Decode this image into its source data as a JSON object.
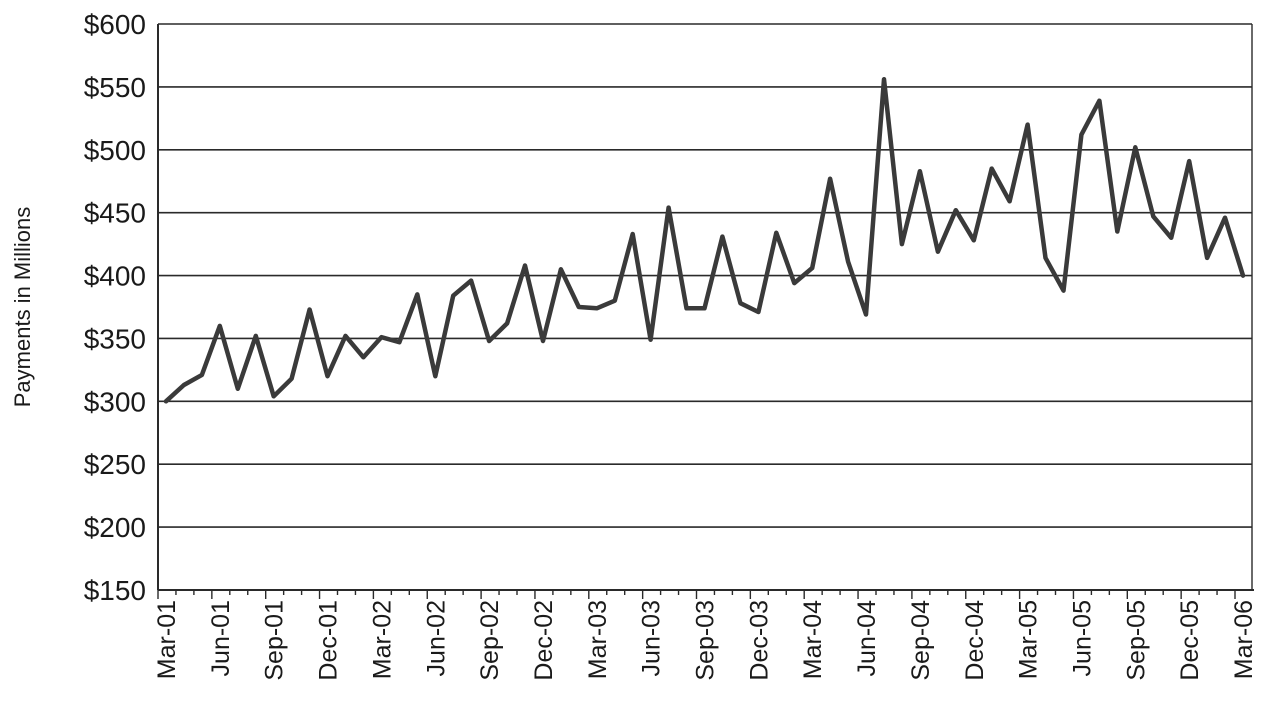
{
  "chart_data": {
    "type": "line",
    "title": "",
    "xlabel": "",
    "ylabel": "Payments in Millions",
    "ylim": [
      150,
      600
    ],
    "y_tick_values": [
      150,
      200,
      250,
      300,
      350,
      400,
      450,
      500,
      550,
      600
    ],
    "y_tick_labels": [
      "$150",
      "$200",
      "$250",
      "$300",
      "$350",
      "$400",
      "$450",
      "$500",
      "$550",
      "$600"
    ],
    "x_tick_labels": [
      "Mar-01",
      "Jun-01",
      "Sep-01",
      "Dec-01",
      "Mar-02",
      "Jun-02",
      "Sep-02",
      "Dec-02",
      "Mar-03",
      "Jun-03",
      "Sep-03",
      "Dec-03",
      "Mar-04",
      "Jun-04",
      "Sep-04",
      "Dec-04",
      "Mar-05",
      "Jun-05",
      "Sep-05",
      "Dec-05",
      "Mar-06"
    ],
    "grid": true,
    "legend": "none",
    "colors": {
      "line": "#3a3a3a",
      "grid": "#2a2a2a",
      "axis": "#2a2a2a"
    },
    "x": [
      "Mar-01",
      "Apr-01",
      "May-01",
      "Jun-01",
      "Jul-01",
      "Aug-01",
      "Sep-01",
      "Oct-01",
      "Nov-01",
      "Dec-01",
      "Jan-02",
      "Feb-02",
      "Mar-02",
      "Apr-02",
      "May-02",
      "Jun-02",
      "Jul-02",
      "Aug-02",
      "Sep-02",
      "Oct-02",
      "Nov-02",
      "Dec-02",
      "Jan-03",
      "Feb-03",
      "Mar-03",
      "Apr-03",
      "May-03",
      "Jun-03",
      "Jul-03",
      "Aug-03",
      "Sep-03",
      "Oct-03",
      "Nov-03",
      "Dec-03",
      "Jan-04",
      "Feb-04",
      "Mar-04",
      "Apr-04",
      "May-04",
      "Jun-04",
      "Jul-04",
      "Aug-04",
      "Sep-04",
      "Oct-04",
      "Nov-04",
      "Dec-04",
      "Jan-05",
      "Feb-05",
      "Mar-05",
      "Apr-05",
      "May-05",
      "Jun-05",
      "Jul-05",
      "Aug-05",
      "Sep-05",
      "Oct-05",
      "Nov-05",
      "Dec-05",
      "Jan-06",
      "Feb-06",
      "Mar-06"
    ],
    "series": [
      {
        "values": [
          300,
          313,
          321,
          360,
          310,
          352,
          304,
          318,
          373,
          320,
          352,
          335,
          351,
          347,
          385,
          320,
          384,
          396,
          348,
          362,
          408,
          348,
          405,
          375,
          374,
          380,
          433,
          349,
          454,
          374,
          374,
          431,
          378,
          371,
          434,
          394,
          406,
          477,
          411,
          369,
          556,
          425,
          483,
          419,
          452,
          428,
          485,
          459,
          520,
          414,
          388,
          512,
          539,
          435,
          502,
          447,
          430,
          491,
          414,
          446,
          400
        ]
      }
    ]
  }
}
